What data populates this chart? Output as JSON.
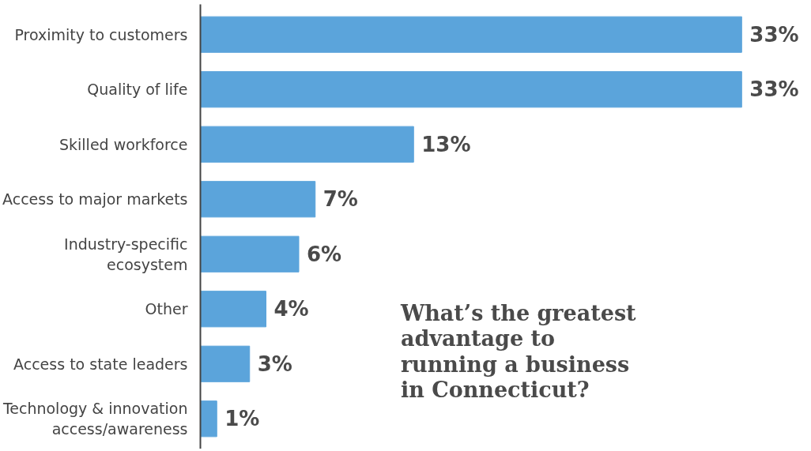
{
  "chart_data": {
    "type": "bar",
    "orientation": "horizontal",
    "title": "What’s the greatest\nadvantage to\nrunning a business\nin Connecticut?",
    "categories": [
      "Proximity to customers",
      "Quality of life",
      "Skilled workforce",
      "Access to major markets",
      "Industry-specific\necosystem",
      "Other",
      "Access to state leaders",
      "Technology & innovation\naccess/awareness"
    ],
    "values": [
      33,
      33,
      13,
      7,
      6,
      4,
      3,
      1
    ],
    "value_labels": [
      "33%",
      "33%",
      "13%",
      "7%",
      "6%",
      "4%",
      "3%",
      "1%"
    ],
    "color": "#5ba4db",
    "tick_labels": "y",
    "grid": false
  }
}
